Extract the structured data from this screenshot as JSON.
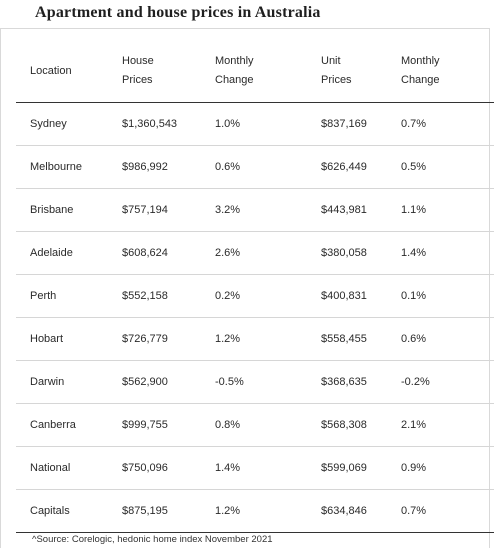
{
  "title": "Apartment and house prices in Australia",
  "headers": {
    "location": "Location",
    "house_prices_1": "House",
    "house_prices_2": "Prices",
    "monthly_change_1": "Monthly",
    "monthly_change_2": "Change",
    "unit_prices_1": "Unit",
    "unit_prices_2": "Prices",
    "unit_monthly_change_1": "Monthly",
    "unit_monthly_change_2": "Change"
  },
  "rows": [
    {
      "location": "Sydney",
      "house": "$1,360,543",
      "house_change": "1.0%",
      "unit": "$837,169",
      "unit_change": "0.7%"
    },
    {
      "location": "Melbourne",
      "house": "$986,992",
      "house_change": "0.6%",
      "unit": "$626,449",
      "unit_change": "0.5%"
    },
    {
      "location": "Brisbane",
      "house": "$757,194",
      "house_change": "3.2%",
      "unit": "$443,981",
      "unit_change": "1.1%"
    },
    {
      "location": "Adelaide",
      "house": "$608,624",
      "house_change": "2.6%",
      "unit": "$380,058",
      "unit_change": "1.4%"
    },
    {
      "location": "Perth",
      "house": "$552,158",
      "house_change": "0.2%",
      "unit": "$400,831",
      "unit_change": "0.1%"
    },
    {
      "location": "Hobart",
      "house": "$726,779",
      "house_change": "1.2%",
      "unit": "$558,455",
      "unit_change": "0.6%"
    },
    {
      "location": "Darwin",
      "house": "$562,900",
      "house_change": "-0.5%",
      "unit": "$368,635",
      "unit_change": "-0.2%"
    },
    {
      "location": "Canberra",
      "house": "$999,755",
      "house_change": "0.8%",
      "unit": "$568,308",
      "unit_change": "2.1%"
    },
    {
      "location": "National",
      "house": "$750,096",
      "house_change": "1.4%",
      "unit": "$599,069",
      "unit_change": "0.9%"
    },
    {
      "location": "Capitals",
      "house": "$875,195",
      "house_change": "1.2%",
      "unit": "$634,846",
      "unit_change": "0.7%"
    }
  ],
  "source": "^Source: Corelogic, hedonic home index November 2021"
}
